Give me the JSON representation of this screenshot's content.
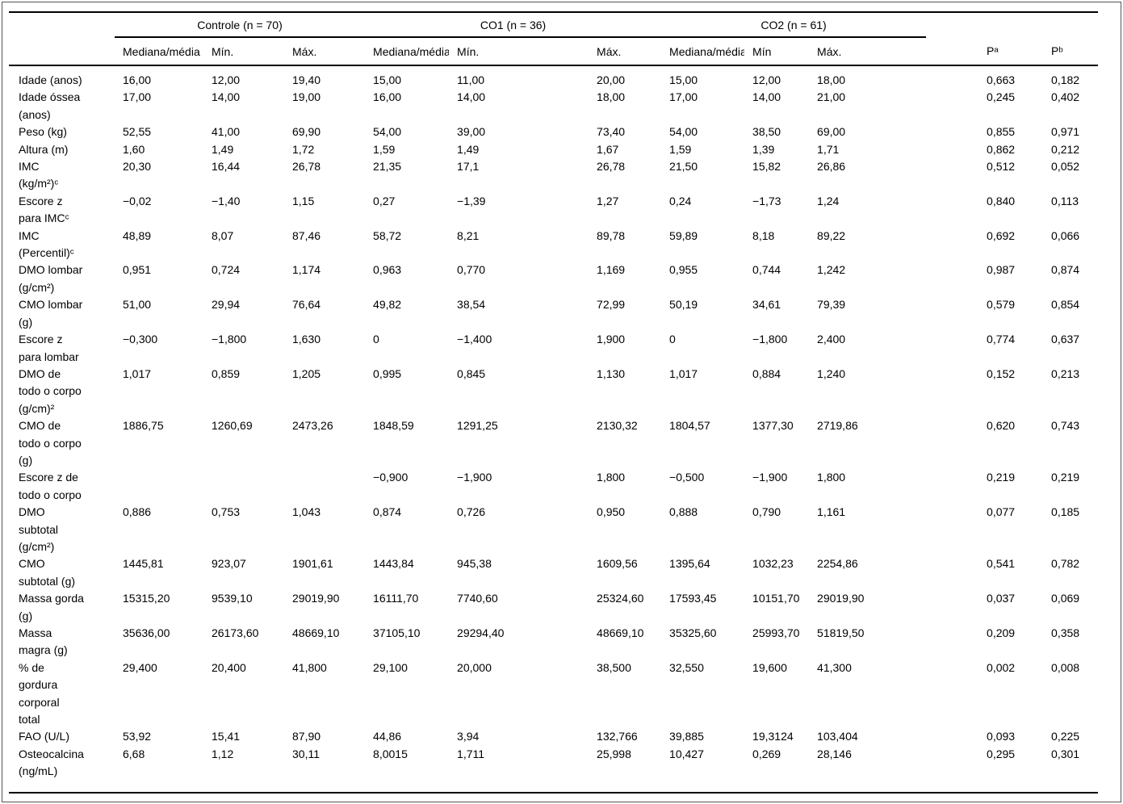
{
  "table": {
    "groups": [
      {
        "label": "Controle (n = 70)"
      },
      {
        "label": "CO1 (n = 36)"
      },
      {
        "label": "CO2 (n = 61)"
      }
    ],
    "subheaders": [
      "Mediana/média",
      "Mín.",
      "Máx.",
      "Mediana/média",
      "Mín.",
      "Máx.",
      "Mediana/média",
      "Mín",
      "Máx."
    ],
    "p_headers": [
      "Pᵃ",
      "Pᵇ"
    ],
    "rows": [
      {
        "label": "Idade (anos)",
        "values": [
          "16,00",
          "12,00",
          "19,40",
          "15,00",
          "11,00",
          "20,00",
          "15,00",
          "12,00",
          "18,00",
          "0,663",
          "0,182"
        ]
      },
      {
        "label": "Idade óssea\n(anos)",
        "values": [
          "17,00",
          "14,00",
          "19,00",
          "16,00",
          "14,00",
          "18,00",
          "17,00",
          "14,00",
          "21,00",
          "0,245",
          "0,402"
        ]
      },
      {
        "label": "Peso (kg)",
        "values": [
          "52,55",
          "41,00",
          "69,90",
          "54,00",
          "39,00",
          "73,40",
          "54,00",
          "38,50",
          "69,00",
          "0,855",
          "0,971"
        ]
      },
      {
        "label": "Altura (m)",
        "values": [
          "1,60",
          "1,49",
          "1,72",
          "1,59",
          "1,49",
          "1,67",
          "1,59",
          "1,39",
          "1,71",
          "0,862",
          "0,212"
        ]
      },
      {
        "label": "IMC\n(kg/m²)ᶜ",
        "values": [
          "20,30",
          "16,44",
          "26,78",
          "21,35",
          "17,1",
          "26,78",
          "21,50",
          "15,82",
          "26,86",
          "0,512",
          "0,052"
        ]
      },
      {
        "label": "Escore z\npara IMCᶜ",
        "values": [
          "−0,02",
          "−1,40",
          "1,15",
          "0,27",
          "−1,39",
          "1,27",
          "0,24",
          "−1,73",
          "1,24",
          "0,840",
          "0,113"
        ]
      },
      {
        "label": "IMC\n(Percentil)ᶜ",
        "values": [
          "48,89",
          "8,07",
          "87,46",
          "58,72",
          "8,21",
          "89,78",
          "59,89",
          "8,18",
          "89,22",
          "0,692",
          "0,066"
        ]
      },
      {
        "label": "DMO lombar\n(g/cm²)",
        "values": [
          "0,951",
          "0,724",
          "1,174",
          "0,963",
          "0,770",
          "1,169",
          "0,955",
          "0,744",
          "1,242",
          "0,987",
          "0,874"
        ]
      },
      {
        "label": "CMO lombar\n(g)",
        "values": [
          "51,00",
          "29,94",
          "76,64",
          "49,82",
          "38,54",
          "72,99",
          "50,19",
          "34,61",
          "79,39",
          "0,579",
          "0,854"
        ]
      },
      {
        "label": "Escore z\npara lombar",
        "values": [
          "−0,300",
          "−1,800",
          "1,630",
          "0",
          "−1,400",
          "1,900",
          "0",
          "−1,800",
          "2,400",
          "0,774",
          "0,637"
        ]
      },
      {
        "label": "DMO de\ntodo o corpo\n(g/cm)²",
        "values": [
          "1,017",
          "0,859",
          "1,205",
          "0,995",
          "0,845",
          "1,130",
          "1,017",
          "0,884",
          "1,240",
          "0,152",
          "0,213"
        ]
      },
      {
        "label": "CMO de\ntodo o corpo\n(g)",
        "values": [
          "1886,75",
          "1260,69",
          "2473,26",
          "1848,59",
          "1291,25",
          "2130,32",
          "1804,57",
          "1377,30",
          "2719,86",
          "0,620",
          "0,743"
        ]
      },
      {
        "label": "Escore z de\ntodo o corpo",
        "values": [
          "",
          "",
          "",
          "−0,900",
          "−1,900",
          "1,800",
          "−0,500",
          "−1,900",
          "1,800",
          "0,219",
          "0,219"
        ]
      },
      {
        "label": "DMO\nsubtotal\n(g/cm²)",
        "values": [
          "0,886",
          "0,753",
          "1,043",
          "0,874",
          "0,726",
          "0,950",
          "0,888",
          "0,790",
          "1,161",
          "0,077",
          "0,185"
        ]
      },
      {
        "label": "CMO\nsubtotal (g)",
        "values": [
          "1445,81",
          "923,07",
          "1901,61",
          "1443,84",
          "945,38",
          "1609,56",
          "1395,64",
          "1032,23",
          "2254,86",
          "0,541",
          "0,782"
        ]
      },
      {
        "label": "Massa gorda\n(g)",
        "values": [
          "15315,20",
          "9539,10",
          "29019,90",
          "16111,70",
          "7740,60",
          "25324,60",
          "17593,45",
          "10151,70",
          "29019,90",
          "0,037",
          "0,069"
        ]
      },
      {
        "label": "Massa\nmagra (g)",
        "values": [
          "35636,00",
          "26173,60",
          "48669,10",
          "37105,10",
          "29294,40",
          "48669,10",
          "35325,60",
          "25993,70",
          "51819,50",
          "0,209",
          "0,358"
        ]
      },
      {
        "label": "% de\ngordura\ncorporal\ntotal",
        "values": [
          "29,400",
          "20,400",
          "41,800",
          "29,100",
          "20,000",
          "38,500",
          "32,550",
          "19,600",
          "41,300",
          "0,002",
          "0,008"
        ]
      },
      {
        "label": "FAO (U/L)",
        "values": [
          "53,92",
          "15,41",
          "87,90",
          "44,86",
          "3,94",
          "132,766",
          "39,885",
          "19,3124",
          "103,404",
          "0,093",
          "0,225"
        ]
      },
      {
        "label": "Osteocalcina\n(ng/mL)",
        "values": [
          "6,68",
          "1,12",
          "30,11",
          "8,0015",
          "1,711",
          "25,998",
          "10,427",
          "0,269",
          "28,146",
          "0,295",
          "0,301"
        ]
      }
    ]
  }
}
